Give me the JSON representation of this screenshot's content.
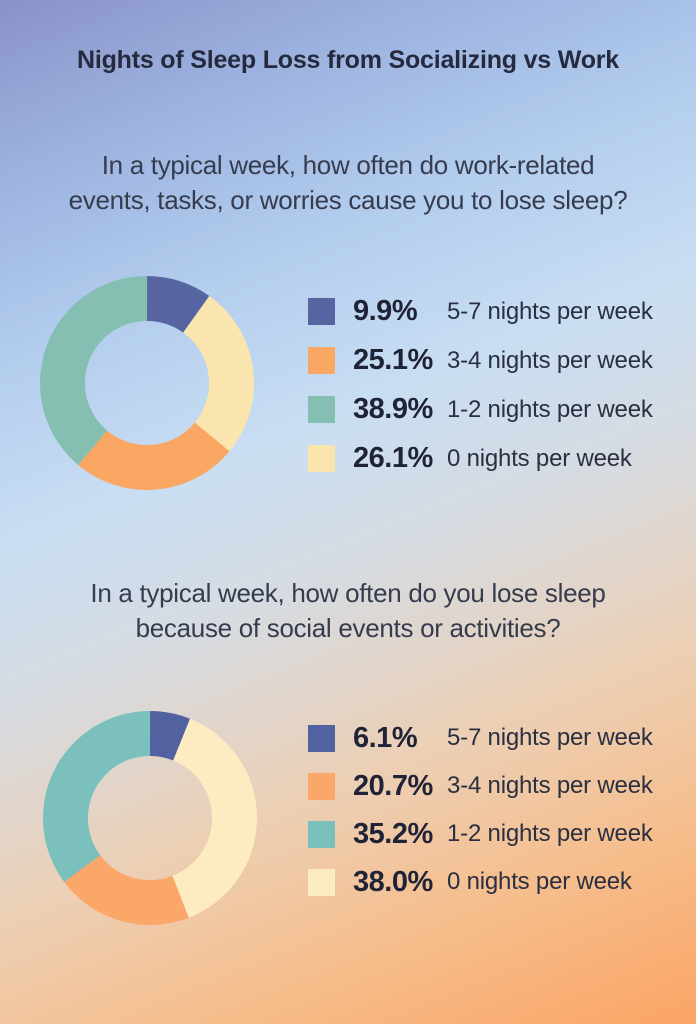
{
  "page": {
    "title": "Nights of Sleep Loss from Socializing vs Work"
  },
  "colors": {
    "background_top_left": "#8a92c8",
    "background_top_right": "#a9c8ef",
    "background_middle": "#c9def2",
    "background_bottom_left": "#f2cfae",
    "background_bottom_right": "#fba465",
    "title_text": "#262a3e",
    "question_text": "#363c4e",
    "legend_value_text": "#1f2335",
    "legend_label_text": "#2a2f41"
  },
  "chart_data": [
    {
      "type": "pie",
      "subtype": "donut",
      "title": "In a typical week, how often do work-related events, tasks, or worries cause you to lose sleep?",
      "question_lines": [
        "In a typical week, how often do work-related",
        "events, tasks, or worries cause you to lose sleep?"
      ],
      "categories": [
        "5-7 nights per week",
        "3-4 nights per week",
        "1-2 nights per week",
        "0 nights per week"
      ],
      "values": [
        9.9,
        25.1,
        38.9,
        26.1
      ],
      "value_labels": [
        "9.9%",
        "25.1%",
        "38.9%",
        "26.1%"
      ],
      "colors": [
        "#5665a1",
        "#fba764",
        "#85bfb2",
        "#fbe5ae"
      ],
      "segment_order_clockwise_from_top": [
        0,
        3,
        1,
        2
      ],
      "donut_hole_ratio": 0.58,
      "legend_position": "right"
    },
    {
      "type": "pie",
      "subtype": "donut",
      "title": "In a typical week, how often do you lose sleep because of social events or activities?",
      "question_lines": [
        "In a typical week, how often do you lose sleep",
        "because of social events or activities?"
      ],
      "categories": [
        "5-7 nights per week",
        "3-4 nights per week",
        "1-2 nights per week",
        "0 nights per week"
      ],
      "values": [
        6.1,
        20.7,
        35.2,
        38.0
      ],
      "value_labels": [
        "6.1%",
        "20.7%",
        "35.2%",
        "38.0%"
      ],
      "colors": [
        "#5262a0",
        "#fca76a",
        "#7bc0bc",
        "#fdecc2"
      ],
      "segment_order_clockwise_from_top": [
        0,
        3,
        1,
        2
      ],
      "donut_hole_ratio": 0.58,
      "legend_position": "right"
    }
  ]
}
